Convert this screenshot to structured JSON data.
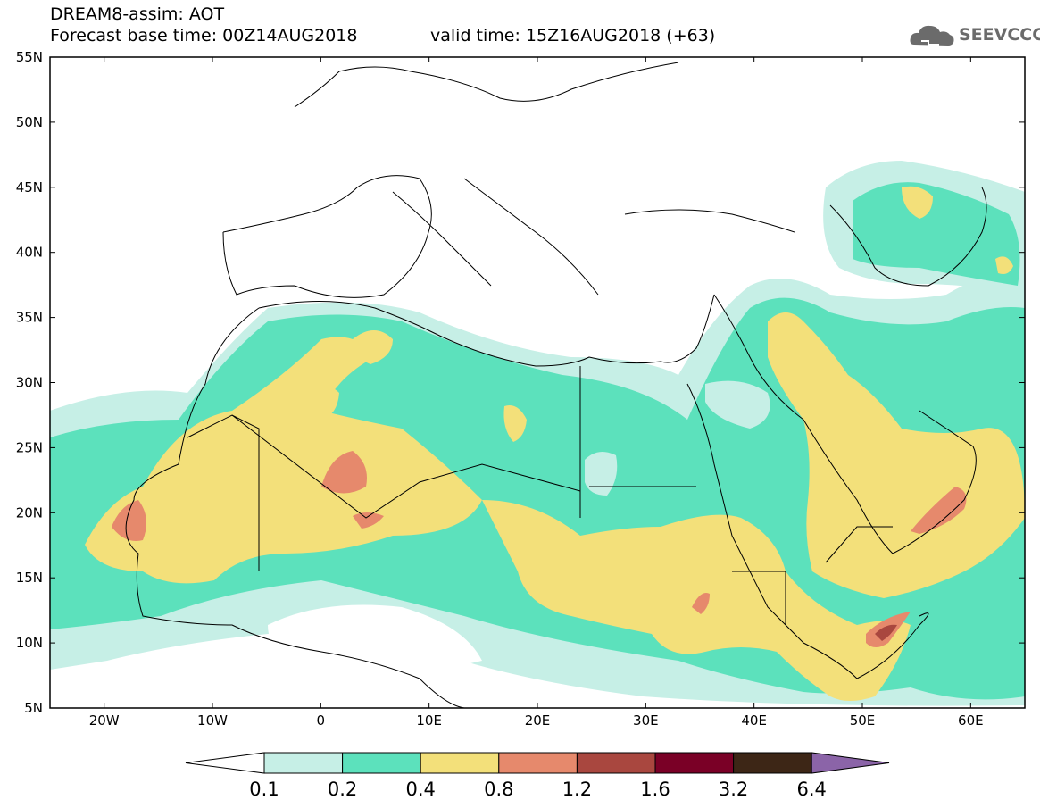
{
  "title": {
    "line1": "DREAM8-assim: AOT",
    "base_time": "Forecast base time: 00Z14AUG2018",
    "valid_time": "valid time: 15Z16AUG2018 (+63)"
  },
  "logo": {
    "text": "SEEVCCC",
    "icon": "cloud-icon"
  },
  "axes": {
    "lat_labels": [
      "55N",
      "50N",
      "45N",
      "40N",
      "35N",
      "30N",
      "25N",
      "20N",
      "15N",
      "10N",
      "5N"
    ],
    "lon_labels": [
      "20W",
      "10W",
      "0",
      "10E",
      "20E",
      "30E",
      "40E",
      "50E",
      "60E"
    ],
    "lat_range": [
      5,
      55
    ],
    "lon_range": [
      -25,
      65
    ]
  },
  "legend": {
    "labels": [
      "0.1",
      "0.2",
      "0.4",
      "0.8",
      "1.2",
      "1.6",
      "3.2",
      "6.4"
    ],
    "colors": [
      "#ffffff",
      "#c6efe6",
      "#5ce1bc",
      "#f3e07a",
      "#e6896c",
      "#a9473f",
      "#7a0026",
      "#3d2616",
      "#8b64a8"
    ]
  },
  "colors": {
    "aot_0_1": "#c6efe6",
    "aot_0_2": "#5ce1bc",
    "aot_0_4": "#f3e07a",
    "aot_0_8": "#e6896c",
    "aot_1_2": "#a9473f"
  }
}
